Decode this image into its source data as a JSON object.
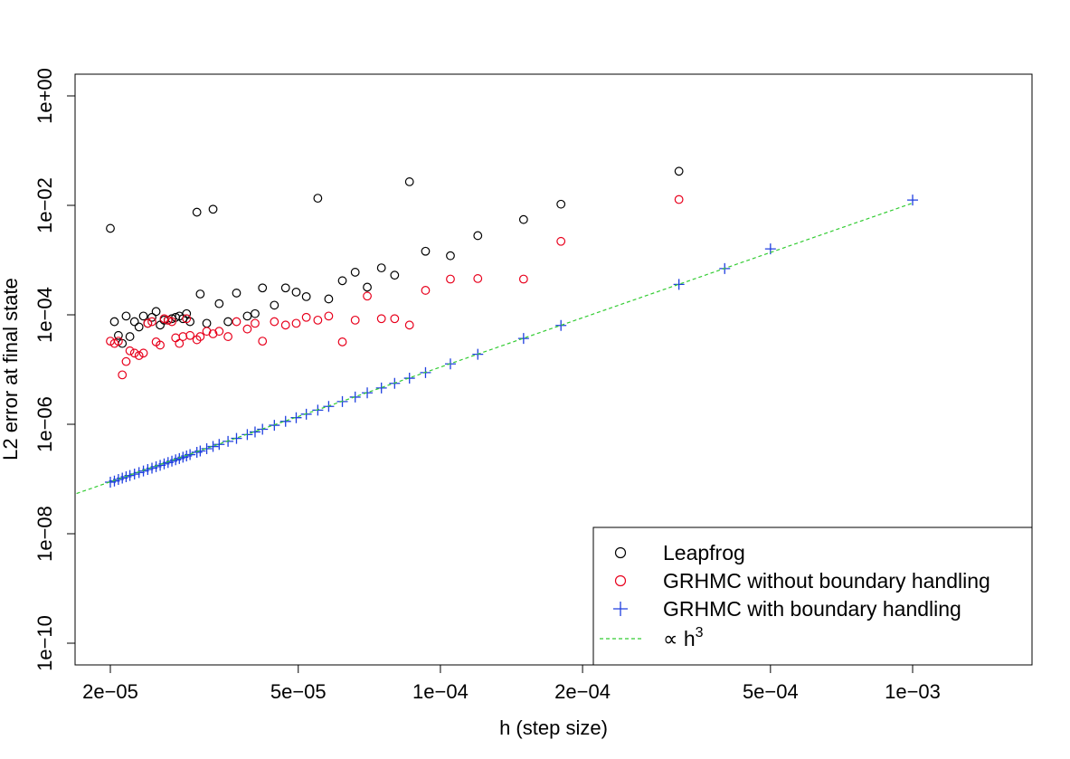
{
  "chart_data": {
    "type": "scatter",
    "title": "",
    "xlabel": "h (step size)",
    "ylabel": "L2 error at final state",
    "x_scale": "log",
    "y_scale": "log",
    "xlim": [
      1.6e-05,
      0.002
    ],
    "ylim": [
      4e-11,
      3.6
    ],
    "x_ticks": [
      {
        "value": 2e-05,
        "label": "2e−05"
      },
      {
        "value": 5e-05,
        "label": "5e−05"
      },
      {
        "value": 0.0001,
        "label": "1e−04"
      },
      {
        "value": 0.0002,
        "label": "2e−04"
      },
      {
        "value": 0.0005,
        "label": "5e−04"
      },
      {
        "value": 0.001,
        "label": "1e−03"
      }
    ],
    "y_ticks": [
      {
        "value": 1,
        "label": "1e+00"
      },
      {
        "value": 0.01,
        "label": "1e−02"
      },
      {
        "value": 0.0001,
        "label": "1e−04"
      },
      {
        "value": 1e-06,
        "label": "1e−06"
      },
      {
        "value": 1e-08,
        "label": "1e−08"
      },
      {
        "value": 1e-10,
        "label": "1e−10"
      }
    ],
    "grid": false,
    "legend_position": "bottom-right",
    "series": [
      {
        "name": "Leapfrog",
        "marker": "circle",
        "color": "#000000",
        "points": [
          [
            2e-05,
            0.0038
          ],
          [
            2.04e-05,
            7.5e-05
          ],
          [
            2.08e-05,
            4.2e-05
          ],
          [
            2.12e-05,
            3e-05
          ],
          [
            2.16e-05,
            9.5e-05
          ],
          [
            2.2e-05,
            4e-05
          ],
          [
            2.25e-05,
            7.5e-05
          ],
          [
            2.3e-05,
            6e-05
          ],
          [
            2.35e-05,
            9.5e-05
          ],
          [
            2.4e-05,
            7e-05
          ],
          [
            2.45e-05,
            9e-05
          ],
          [
            2.5e-05,
            0.000115
          ],
          [
            2.55e-05,
            6.5e-05
          ],
          [
            2.6e-05,
            8e-05
          ],
          [
            2.65e-05,
            8e-05
          ],
          [
            2.7e-05,
            8.5e-05
          ],
          [
            2.75e-05,
            9e-05
          ],
          [
            2.8e-05,
            9.5e-05
          ],
          [
            2.85e-05,
            8.5e-05
          ],
          [
            2.9e-05,
            0.000105
          ],
          [
            2.95e-05,
            7.5e-05
          ],
          [
            3.05e-05,
            0.0075
          ],
          [
            3.1e-05,
            0.00024
          ],
          [
            3.2e-05,
            7e-05
          ],
          [
            3.3e-05,
            0.0085
          ],
          [
            3.4e-05,
            0.00016
          ],
          [
            3.55e-05,
            7.5e-05
          ],
          [
            3.7e-05,
            0.00025
          ],
          [
            3.9e-05,
            9.5e-05
          ],
          [
            4.05e-05,
            0.000105
          ],
          [
            4.2e-05,
            0.00031
          ],
          [
            4.45e-05,
            0.00015
          ],
          [
            4.7e-05,
            0.00031
          ],
          [
            4.95e-05,
            0.00026
          ],
          [
            5.2e-05,
            0.000215
          ],
          [
            5.5e-05,
            0.0135
          ],
          [
            5.8e-05,
            0.000195
          ],
          [
            6.2e-05,
            0.00042
          ],
          [
            6.6e-05,
            0.0006
          ],
          [
            7e-05,
            0.00032
          ],
          [
            7.5e-05,
            0.00072
          ],
          [
            8e-05,
            0.00053
          ],
          [
            8.6e-05,
            0.027
          ],
          [
            9.3e-05,
            0.00145
          ],
          [
            0.000105,
            0.0012
          ],
          [
            0.00012,
            0.0028
          ],
          [
            0.00015,
            0.0055
          ],
          [
            0.00018,
            0.0105
          ],
          [
            0.00032,
            0.042
          ]
        ]
      },
      {
        "name": "GRHMC without boundary handling",
        "marker": "circle",
        "color": "#e8001c",
        "points": [
          [
            2e-05,
            3.3e-05
          ],
          [
            2.04e-05,
            3e-05
          ],
          [
            2.08e-05,
            3.3e-05
          ],
          [
            2.12e-05,
            8e-06
          ],
          [
            2.16e-05,
            1.4e-05
          ],
          [
            2.2e-05,
            2.2e-05
          ],
          [
            2.25e-05,
            2e-05
          ],
          [
            2.3e-05,
            1.8e-05
          ],
          [
            2.35e-05,
            2e-05
          ],
          [
            2.4e-05,
            7e-05
          ],
          [
            2.45e-05,
            7.5e-05
          ],
          [
            2.5e-05,
            3.2e-05
          ],
          [
            2.55e-05,
            2.8e-05
          ],
          [
            2.6e-05,
            8.5e-05
          ],
          [
            2.65e-05,
            8e-05
          ],
          [
            2.7e-05,
            7.5e-05
          ],
          [
            2.75e-05,
            3.8e-05
          ],
          [
            2.8e-05,
            3e-05
          ],
          [
            2.85e-05,
            4e-05
          ],
          [
            2.9e-05,
            8.5e-05
          ],
          [
            2.95e-05,
            4.2e-05
          ],
          [
            3.05e-05,
            3.5e-05
          ],
          [
            3.1e-05,
            4e-05
          ],
          [
            3.2e-05,
            5e-05
          ],
          [
            3.3e-05,
            4.5e-05
          ],
          [
            3.4e-05,
            5e-05
          ],
          [
            3.55e-05,
            4e-05
          ],
          [
            3.7e-05,
            7.5e-05
          ],
          [
            3.9e-05,
            5.5e-05
          ],
          [
            4.05e-05,
            7e-05
          ],
          [
            4.2e-05,
            3.3e-05
          ],
          [
            4.45e-05,
            7.5e-05
          ],
          [
            4.7e-05,
            6.5e-05
          ],
          [
            4.95e-05,
            7e-05
          ],
          [
            5.2e-05,
            9e-05
          ],
          [
            5.5e-05,
            8e-05
          ],
          [
            5.8e-05,
            9.5e-05
          ],
          [
            6.2e-05,
            3.2e-05
          ],
          [
            6.6e-05,
            8e-05
          ],
          [
            7e-05,
            0.00022
          ],
          [
            7.5e-05,
            8.5e-05
          ],
          [
            8e-05,
            8.5e-05
          ],
          [
            8.6e-05,
            6.5e-05
          ],
          [
            9.3e-05,
            0.00028
          ],
          [
            0.000105,
            0.00045
          ],
          [
            0.00012,
            0.00046
          ],
          [
            0.00015,
            0.00045
          ],
          [
            0.00018,
            0.0022
          ],
          [
            0.00032,
            0.0128
          ]
        ]
      },
      {
        "name": "GRHMC with boundary handling",
        "marker": "plus",
        "color": "#1f3fe0",
        "points": [
          [
            2e-05,
            8.76e-08
          ],
          [
            2.04e-05,
            9.2e-08
          ],
          [
            2.08e-05,
            9.8e-08
          ],
          [
            2.12e-05,
            1.04e-07
          ],
          [
            2.16e-05,
            1.1e-07
          ],
          [
            2.2e-05,
            1.16e-07
          ],
          [
            2.25e-05,
            1.23e-07
          ],
          [
            2.3e-05,
            1.31e-07
          ],
          [
            2.35e-05,
            1.4e-07
          ],
          [
            2.4e-05,
            1.49e-07
          ],
          [
            2.45e-05,
            1.58e-07
          ],
          [
            2.5e-05,
            1.68e-07
          ],
          [
            2.55e-05,
            1.78e-07
          ],
          [
            2.6e-05,
            1.89e-07
          ],
          [
            2.65e-05,
            2e-07
          ],
          [
            2.7e-05,
            2.12e-07
          ],
          [
            2.75e-05,
            2.24e-07
          ],
          [
            2.8e-05,
            2.37e-07
          ],
          [
            2.85e-05,
            2.5e-07
          ],
          [
            2.9e-05,
            2.64e-07
          ],
          [
            2.95e-05,
            2.79e-07
          ],
          [
            3.05e-05,
            3.08e-07
          ],
          [
            3.1e-05,
            3.25e-07
          ],
          [
            3.2e-05,
            3.58e-07
          ],
          [
            3.3e-05,
            3.93e-07
          ],
          [
            3.4e-05,
            4.29e-07
          ],
          [
            3.55e-05,
            4.88e-07
          ],
          [
            3.7e-05,
            5.53e-07
          ],
          [
            3.9e-05,
            6.48e-07
          ],
          [
            4.05e-05,
            7.25e-07
          ],
          [
            4.2e-05,
            8.1e-07
          ],
          [
            4.45e-05,
            9.6e-07
          ],
          [
            4.7e-05,
            1.13e-06
          ],
          [
            4.95e-05,
            1.32e-06
          ],
          [
            5.2e-05,
            1.53e-06
          ],
          [
            5.5e-05,
            1.81e-06
          ],
          [
            5.8e-05,
            2.12e-06
          ],
          [
            6.2e-05,
            2.6e-06
          ],
          [
            6.6e-05,
            3.14e-06
          ],
          [
            7e-05,
            3.75e-06
          ],
          [
            7.5e-05,
            4.6e-06
          ],
          [
            8e-05,
            5.6e-06
          ],
          [
            8.6e-05,
            6.95e-06
          ],
          [
            9.3e-05,
            8.8e-06
          ],
          [
            0.000105,
            1.27e-05
          ],
          [
            0.00012,
            1.9e-05
          ],
          [
            0.00015,
            3.7e-05
          ],
          [
            0.00018,
            6.4e-05
          ],
          [
            0.00032,
            0.00036
          ],
          [
            0.0004,
            0.0007
          ],
          [
            0.0005,
            0.0016
          ],
          [
            0.001,
            0.0125
          ]
        ]
      },
      {
        "name": "∝ h^3",
        "marker": "dashed-line",
        "color": "#33cc33",
        "points": [
          [
            1.6e-05,
            4.56e-08
          ],
          [
            0.001,
            0.011
          ]
        ]
      }
    ]
  },
  "legend": {
    "items": [
      {
        "label": "Leapfrog",
        "marker": "circle",
        "color": "#000000"
      },
      {
        "label": "GRHMC without boundary handling",
        "marker": "circle",
        "color": "#e8001c"
      },
      {
        "label": "GRHMC with boundary handling",
        "marker": "plus",
        "color": "#1f3fe0"
      },
      {
        "label": "∝ h",
        "superscript": "3",
        "marker": "dashed-line",
        "color": "#33cc33"
      }
    ]
  }
}
